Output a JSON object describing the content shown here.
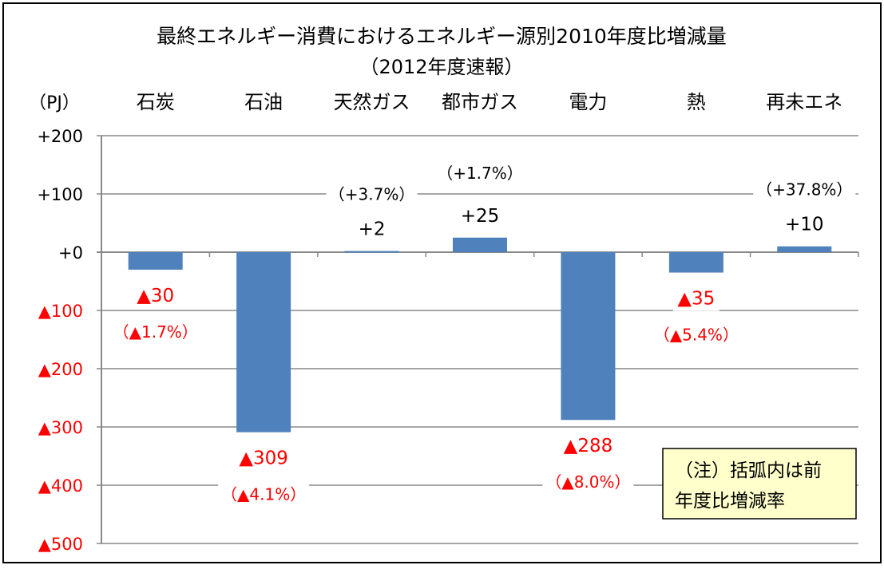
{
  "chart_data": {
    "type": "bar",
    "title": "最終エネルギー消費におけるエネルギー源別2010年度比増減量",
    "subtitle": "（2012年度速報）",
    "unit_label": "（PJ）",
    "categories": [
      "石炭",
      "石油",
      "天然ガス",
      "都市ガス",
      "電力",
      "熱",
      "再未エネ"
    ],
    "values": [
      -30,
      -309,
      2,
      25,
      -288,
      -35,
      10
    ],
    "value_labels": [
      "▲30",
      "▲309",
      "+2",
      "+25",
      "▲288",
      "▲35",
      "+10"
    ],
    "percent_labels": [
      "（▲1.7%）",
      "（▲4.1%）",
      "（+3.7%）",
      "（+1.7%）",
      "（▲8.0%）",
      "（▲5.4%）",
      "（+37.8%）"
    ],
    "ylim": [
      -500,
      200
    ],
    "yticks": [
      200,
      100,
      0,
      -100,
      -200,
      -300,
      -400,
      -500
    ],
    "ytick_labels": [
      "+200",
      "+100",
      "+0",
      "▲100",
      "▲200",
      "▲300",
      "▲400",
      "▲500"
    ],
    "grid": true,
    "note": [
      "（注）括弧内は前",
      "年度比増減率"
    ],
    "colors": {
      "bar": "#4f81bd",
      "negative_text": "#ff0000",
      "positive_text": "#000000",
      "grid": "#888888",
      "note_bg": "#ffffcc"
    }
  }
}
